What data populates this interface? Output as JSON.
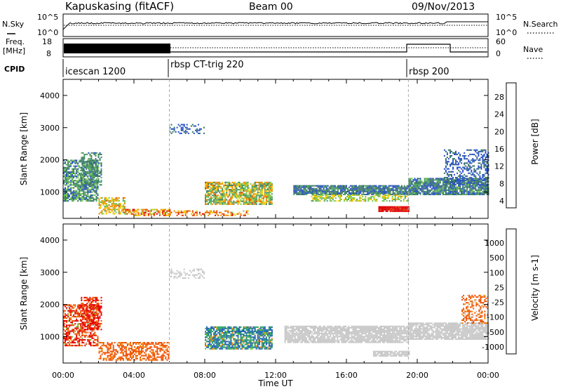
{
  "header": {
    "station": "Kapuskasing (fitACF)",
    "beam": "Beam 00",
    "date": "09/Nov/2013"
  },
  "noise_panel": {
    "left_label": "N.Sky",
    "right_label": "N.Search",
    "left_ticks": [
      "10^5",
      "10^0"
    ],
    "right_ticks": [
      "10^5",
      "10^0"
    ]
  },
  "freq_panel": {
    "left_label_1": "Freq.",
    "left_label_2": "[MHz]",
    "right_label": "Nave",
    "left_ticks": [
      "18",
      "8"
    ],
    "right_ticks": [
      "60",
      "0"
    ]
  },
  "cpid": {
    "label": "CPID",
    "segments": [
      {
        "name": "icescan 1200",
        "start_hour": 0
      },
      {
        "name": "rbsp CT-trig 220",
        "start_hour": 6
      },
      {
        "name": "rbsp 200",
        "start_hour": 19.5
      }
    ]
  },
  "axes": {
    "y_label": "Slant Range [km]",
    "x_label": "Time UT",
    "y_ticks": [
      "4000",
      "3000",
      "2000",
      "1000"
    ],
    "x_ticks": [
      "00:00",
      "04:00",
      "08:00",
      "12:00",
      "16:00",
      "20:00",
      "00:00"
    ]
  },
  "colors": {
    "power": [
      "#0000ff",
      "#2850c8",
      "#3c7864",
      "#50a064",
      "#78c850",
      "#f0c800",
      "#f08c00",
      "#e64600",
      "#dc0000"
    ],
    "velocity": [
      "#e60000",
      "#f05000",
      "#f08c00",
      "#f0b428",
      "#c8c8c8",
      "#64c832",
      "#2ca060",
      "#1e64b4",
      "#0a2896"
    ],
    "velocity_gray": "#c8c8c8"
  },
  "chart_data": [
    {
      "type": "heatmap",
      "title": "",
      "ylabel": "Slant Range [km]",
      "xlabel": "",
      "xlim_hours": [
        0,
        24
      ],
      "ylim_km": [
        180,
        4500
      ],
      "colorbar": {
        "label": "Power [dB]",
        "ticks": [
          "28",
          "24",
          "20",
          "16",
          "12",
          "8",
          "4"
        ],
        "range": [
          0,
          30
        ]
      },
      "regions": [
        {
          "t0": 0.0,
          "t1": 2.0,
          "r0": 700,
          "r1": 2000,
          "density": 0.75,
          "value_range": [
            4,
            16
          ]
        },
        {
          "t0": 1.0,
          "t1": 2.2,
          "r0": 1200,
          "r1": 2200,
          "density": 0.5,
          "value_range": [
            6,
            14
          ]
        },
        {
          "t0": 2.0,
          "t1": 3.5,
          "r0": 300,
          "r1": 800,
          "density": 0.6,
          "value_range": [
            12,
            24
          ]
        },
        {
          "t0": 3.5,
          "t1": 6.0,
          "r0": 250,
          "r1": 450,
          "density": 0.7,
          "value_range": [
            14,
            28
          ]
        },
        {
          "t0": 6.0,
          "t1": 10.5,
          "r0": 250,
          "r1": 400,
          "density": 0.45,
          "value_range": [
            16,
            28
          ]
        },
        {
          "t0": 6.0,
          "t1": 8.0,
          "r0": 2800,
          "r1": 3100,
          "density": 0.35,
          "value_range": [
            4,
            8
          ]
        },
        {
          "t0": 8.0,
          "t1": 11.8,
          "r0": 600,
          "r1": 1300,
          "density": 0.8,
          "value_range": [
            8,
            24
          ]
        },
        {
          "t0": 13.0,
          "t1": 19.5,
          "r0": 900,
          "r1": 1200,
          "density": 0.9,
          "value_range": [
            4,
            12
          ]
        },
        {
          "t0": 14.0,
          "t1": 19.5,
          "r0": 700,
          "r1": 900,
          "density": 0.55,
          "value_range": [
            12,
            20
          ]
        },
        {
          "t0": 17.8,
          "t1": 19.5,
          "r0": 380,
          "r1": 560,
          "density": 0.95,
          "value_range": [
            26,
            30
          ]
        },
        {
          "t0": 19.5,
          "t1": 24.0,
          "r0": 900,
          "r1": 1400,
          "density": 0.85,
          "value_range": [
            4,
            14
          ]
        },
        {
          "t0": 21.5,
          "t1": 24.0,
          "r0": 1200,
          "r1": 2300,
          "density": 0.45,
          "value_range": [
            4,
            8
          ]
        }
      ]
    },
    {
      "type": "heatmap",
      "title": "",
      "ylabel": "Slant Range [km]",
      "xlabel": "Time UT",
      "xlim_hours": [
        0,
        24
      ],
      "ylim_km": [
        180,
        4500
      ],
      "colorbar": {
        "label": "Velocity [m s-1]",
        "ticks": [
          "1000",
          "500",
          "100",
          "25",
          "-25",
          "-100",
          "-500",
          "-1000"
        ]
      },
      "regions": [
        {
          "t0": 0.0,
          "t1": 2.0,
          "r0": 700,
          "r1": 2000,
          "density": 0.6,
          "value_range": [
            -1000,
            100
          ]
        },
        {
          "t0": 1.0,
          "t1": 2.2,
          "r0": 1200,
          "r1": 2200,
          "density": 0.5,
          "value_range": [
            -1000,
            -100
          ]
        },
        {
          "t0": 2.0,
          "t1": 6.0,
          "r0": 250,
          "r1": 800,
          "density": 0.55,
          "value_range": [
            -500,
            -25
          ]
        },
        {
          "t0": 6.0,
          "t1": 8.0,
          "r0": 2800,
          "r1": 3100,
          "density": 0.35,
          "value_range": [
            -25,
            25
          ]
        },
        {
          "t0": 8.0,
          "t1": 11.8,
          "r0": 600,
          "r1": 1300,
          "density": 0.8,
          "value_range": [
            -100,
            1000
          ]
        },
        {
          "t0": 12.5,
          "t1": 19.5,
          "r0": 800,
          "r1": 1300,
          "density": 0.85,
          "value_range": [
            -25,
            25
          ]
        },
        {
          "t0": 17.5,
          "t1": 19.5,
          "r0": 380,
          "r1": 560,
          "density": 0.9,
          "value_range": [
            -25,
            25
          ]
        },
        {
          "t0": 19.5,
          "t1": 24.0,
          "r0": 900,
          "r1": 1400,
          "density": 0.85,
          "value_range": [
            -25,
            25
          ]
        },
        {
          "t0": 22.5,
          "t1": 24.0,
          "r0": 1400,
          "r1": 2300,
          "density": 0.4,
          "value_range": [
            -500,
            25
          ]
        }
      ]
    }
  ]
}
